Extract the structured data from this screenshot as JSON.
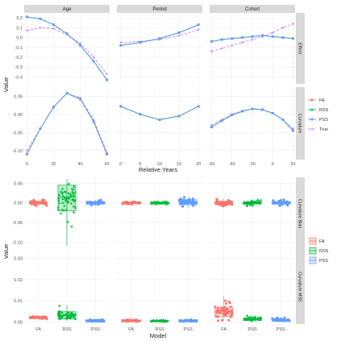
{
  "colors": {
    "FA": "#f8766d",
    "RSS": "#00ba38",
    "PSS": "#619cff",
    "True": "#c77cff",
    "strip_bg": "#d9d9d9",
    "grid": "#ebebeb"
  },
  "chart_data": [
    {
      "type": "line",
      "panel_set": "top",
      "columns": [
        "Age",
        "Period",
        "Cohort"
      ],
      "rows": [
        "Effect",
        "Curvature"
      ],
      "xlabel": "Relative Years",
      "ylabel": "Value",
      "legend": {
        "placement": "right",
        "entries": [
          "FA",
          "RSS",
          "PSS",
          "True"
        ]
      },
      "xlim": {
        "Age": [
          -2,
          62
        ],
        "Period": [
          -1,
          21
        ],
        "Cohort": [
          -62,
          22
        ]
      },
      "xticks": {
        "Age": [
          0,
          20,
          40,
          60
        ],
        "Period": [
          0,
          5,
          10,
          15,
          20
        ],
        "Cohort": [
          -60,
          -40,
          -20,
          0,
          20
        ]
      },
      "ylim": {
        "Effect": [
          -0.47,
          0.25
        ],
        "Curvature": [
          -0.125,
          0.075
        ]
      },
      "yticks": {
        "Effect": [
          "0.2",
          "0.1",
          "0.0",
          "-0.1",
          "-0.2",
          "-0.3",
          "-0.4"
        ],
        "Curvature": [
          "0.05",
          "0.00",
          "-0.05",
          "-0.10"
        ]
      },
      "effect": {
        "Age": {
          "x": [
            0,
            10,
            20,
            30,
            40,
            50,
            60
          ],
          "FA": [
            0.21,
            0.19,
            0.13,
            0.04,
            -0.08,
            -0.24,
            -0.43
          ],
          "RSS": [
            0.21,
            0.19,
            0.13,
            0.04,
            -0.08,
            -0.24,
            -0.43
          ],
          "PSS": [
            0.21,
            0.19,
            0.13,
            0.04,
            -0.08,
            -0.24,
            -0.43
          ],
          "True": [
            0.07,
            0.1,
            0.09,
            0.03,
            -0.06,
            -0.2,
            -0.37
          ]
        },
        "Period": {
          "x": [
            0,
            5,
            10,
            15,
            20
          ],
          "FA": [
            -0.08,
            -0.05,
            -0.01,
            0.05,
            0.13
          ],
          "RSS": [
            -0.08,
            -0.05,
            -0.01,
            0.05,
            0.13
          ],
          "PSS": [
            -0.08,
            -0.05,
            -0.01,
            0.05,
            0.13
          ],
          "True": [
            -0.05,
            -0.04,
            -0.02,
            0.02,
            0.08
          ]
        },
        "Cohort": {
          "x": [
            -60,
            -50,
            -40,
            -30,
            -20,
            -10,
            0,
            10,
            20
          ],
          "FA": [
            -0.04,
            -0.02,
            -0.01,
            0.0,
            0.01,
            0.02,
            0.01,
            0.0,
            -0.01
          ],
          "RSS": [
            -0.04,
            -0.02,
            -0.01,
            0.0,
            0.01,
            0.02,
            0.01,
            0.0,
            -0.01
          ],
          "PSS": [
            -0.04,
            -0.02,
            -0.01,
            0.0,
            0.01,
            0.02,
            0.01,
            0.0,
            -0.01
          ],
          "True": [
            -0.14,
            -0.11,
            -0.08,
            -0.05,
            -0.02,
            0.01,
            0.05,
            0.1,
            0.14
          ]
        }
      },
      "curvature": {
        "Age": {
          "x": [
            0,
            10,
            20,
            30,
            40,
            50,
            60
          ],
          "FA": [
            -0.11,
            -0.04,
            0.02,
            0.058,
            0.042,
            -0.02,
            -0.11
          ],
          "RSS": [
            -0.11,
            -0.04,
            0.02,
            0.058,
            0.042,
            -0.02,
            -0.11
          ],
          "PSS": [
            -0.11,
            -0.04,
            0.02,
            0.058,
            0.042,
            -0.02,
            -0.11
          ],
          "True": [
            -0.1,
            -0.04,
            0.02,
            0.058,
            0.045,
            -0.015,
            -0.105
          ]
        },
        "Period": {
          "x": [
            0,
            5,
            10,
            15,
            20
          ],
          "FA": [
            0.022,
            0.0,
            -0.015,
            -0.005,
            0.022
          ],
          "RSS": [
            0.022,
            0.0,
            -0.015,
            -0.005,
            0.022
          ],
          "PSS": [
            0.022,
            0.0,
            -0.015,
            -0.005,
            0.022
          ],
          "True": [
            0.022,
            0.0,
            -0.015,
            -0.005,
            0.022
          ]
        },
        "Cohort": {
          "x": [
            -60,
            -50,
            -40,
            -30,
            -20,
            -10,
            0,
            10,
            20
          ],
          "FA": [
            -0.035,
            -0.018,
            -0.002,
            0.008,
            0.015,
            0.013,
            0.003,
            -0.015,
            -0.045
          ],
          "RSS": [
            -0.035,
            -0.018,
            -0.002,
            0.008,
            0.015,
            0.013,
            0.003,
            -0.015,
            -0.045
          ],
          "PSS": [
            -0.035,
            -0.018,
            -0.002,
            0.008,
            0.015,
            0.013,
            0.003,
            -0.015,
            -0.045
          ],
          "True": [
            -0.03,
            -0.015,
            0.0,
            0.01,
            0.015,
            0.012,
            0.003,
            -0.015,
            -0.04
          ]
        }
      }
    },
    {
      "type": "box",
      "panel_set": "bottom",
      "columns": [
        "Age",
        "Period",
        "Cohort"
      ],
      "rows": [
        "Curvature Bias",
        "Curvature MSE"
      ],
      "categories": [
        "FA",
        "RSS",
        "PSS"
      ],
      "xlabel": "Model",
      "ylabel": "Value",
      "legend": {
        "placement": "right",
        "entries": [
          "FA",
          "RSS",
          "PSS"
        ]
      },
      "ylim": {
        "Curvature Bias": [
          -0.12,
          0.065
        ],
        "Curvature MSE": [
          -0.001,
          0.034
        ]
      },
      "yticks": {
        "Curvature Bias": [
          "0.05",
          "0.00",
          "-0.05",
          "-0.10"
        ],
        "Curvature MSE": [
          "0.03",
          "0.02",
          "0.01",
          "0.00"
        ]
      },
      "bias": {
        "Age": [
          {
            "q1": -0.003,
            "median": 0.0,
            "q3": 0.003,
            "wlo": -0.008,
            "whi": 0.008
          },
          {
            "q1": -0.02,
            "median": 0.015,
            "q3": 0.045,
            "wlo": -0.11,
            "whi": 0.06
          },
          {
            "q1": -0.003,
            "median": 0.0,
            "q3": 0.003,
            "wlo": -0.008,
            "whi": 0.008
          }
        ],
        "Period": [
          {
            "q1": -0.002,
            "median": 0.0,
            "q3": 0.002,
            "wlo": -0.004,
            "whi": 0.004
          },
          {
            "q1": -0.002,
            "median": 0.0,
            "q3": 0.002,
            "wlo": -0.004,
            "whi": 0.004
          },
          {
            "q1": -0.005,
            "median": 0.002,
            "q3": 0.008,
            "wlo": -0.012,
            "whi": 0.015
          }
        ],
        "Cohort": [
          {
            "q1": -0.004,
            "median": 0.0,
            "q3": 0.004,
            "wlo": -0.012,
            "whi": 0.01
          },
          {
            "q1": -0.003,
            "median": 0.0,
            "q3": 0.003,
            "wlo": -0.01,
            "whi": 0.008
          },
          {
            "q1": -0.003,
            "median": 0.0,
            "q3": 0.003,
            "wlo": -0.008,
            "whi": 0.008
          }
        ]
      },
      "mse": {
        "Age": [
          {
            "q1": 0.0018,
            "median": 0.002,
            "q3": 0.0024,
            "wlo": 0.0012,
            "whi": 0.003
          },
          {
            "q1": 0.0015,
            "median": 0.003,
            "q3": 0.0048,
            "wlo": 0.0005,
            "whi": 0.008
          },
          {
            "q1": 0.0003,
            "median": 0.0005,
            "q3": 0.0008,
            "wlo": 0.0001,
            "whi": 0.0012
          }
        ],
        "Period": [
          {
            "q1": 0.0003,
            "median": 0.0005,
            "q3": 0.0008,
            "wlo": 0.0001,
            "whi": 0.0012
          },
          {
            "q1": 0.0002,
            "median": 0.0004,
            "q3": 0.0007,
            "wlo": 0.0001,
            "whi": 0.001
          },
          {
            "q1": 0.0003,
            "median": 0.0005,
            "q3": 0.0008,
            "wlo": 0.0001,
            "whi": 0.0012
          }
        ],
        "Cohort": [
          {
            "q1": 0.0025,
            "median": 0.004,
            "q3": 0.007,
            "wlo": 0.0005,
            "whi": 0.012
          },
          {
            "q1": 0.0008,
            "median": 0.0012,
            "q3": 0.0018,
            "wlo": 0.0003,
            "whi": 0.003
          },
          {
            "q1": 0.0005,
            "median": 0.0008,
            "q3": 0.0012,
            "wlo": 0.0002,
            "whi": 0.002
          }
        ]
      }
    }
  ]
}
